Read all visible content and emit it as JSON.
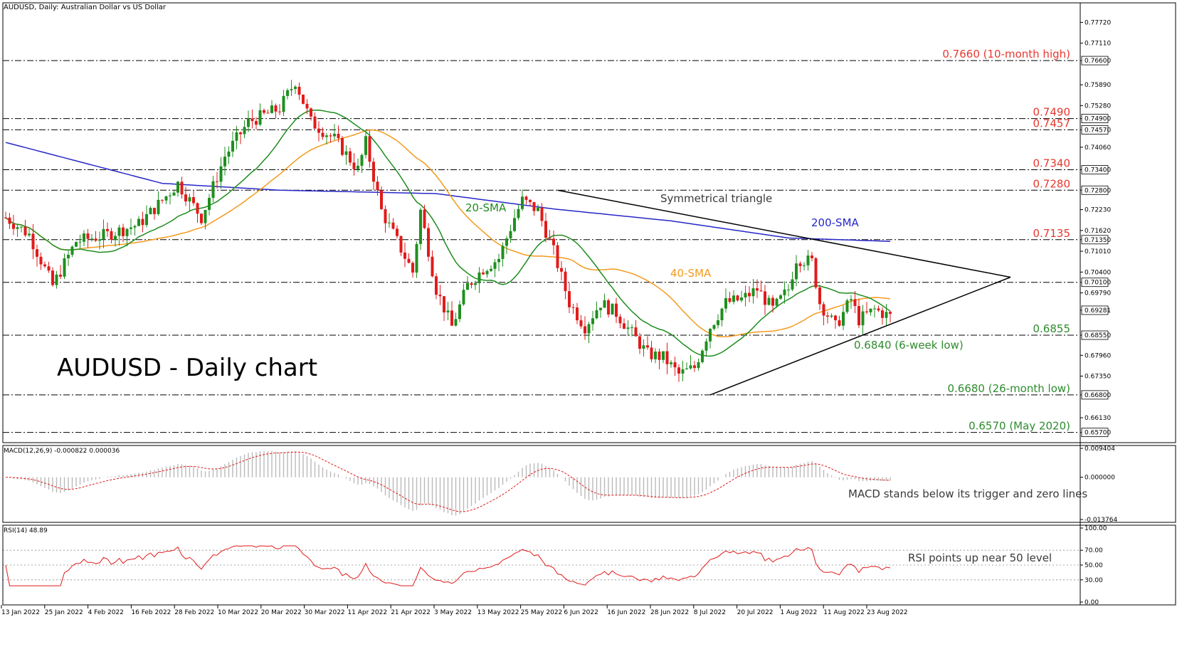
{
  "chart_data": {
    "type": "candlestick",
    "header": "AUDUSD, Daily:  Australian Dollar vs US Dollar",
    "big_title": "AUDUSD - Daily chart",
    "price_axis": {
      "range": [
        0.654,
        0.78
      ],
      "ticks": [
        "0.77720",
        "0.77110",
        "0.76600",
        "0.75890",
        "0.75280",
        "0.74900",
        "0.74570",
        "0.74060",
        "0.73400",
        "0.72800",
        "0.72230",
        "0.71620",
        "0.71350",
        "0.71010",
        "0.70400",
        "0.70100",
        "0.69790",
        "0.69281",
        "0.68550",
        "0.67960",
        "0.67350",
        "0.66800",
        "0.66130",
        "0.65700"
      ],
      "highlight_ticks": [
        "0.76600",
        "0.74900",
        "0.74570",
        "0.73400",
        "0.72800",
        "0.71350",
        "0.70100",
        "0.69281",
        "0.68550",
        "0.66800",
        "0.65700"
      ]
    },
    "x_labels": [
      "13 Jan 2022",
      "25 Jan 2022",
      "4 Feb 2022",
      "16 Feb 2022",
      "28 Feb 2022",
      "10 Mar 2022",
      "20 Mar 2022",
      "30 Mar 2022",
      "11 Apr 2022",
      "21 Apr 2022",
      "3 May 2022",
      "13 May 2022",
      "25 May 2022",
      "6 Jun 2022",
      "16 Jun 2022",
      "28 Jun 2022",
      "8 Jul 2022",
      "20 Jul 2022",
      "1 Aug 2022",
      "11 Aug 2022",
      "23 Aug 2022"
    ],
    "levels": [
      {
        "value": 0.766,
        "label": "0.7660 (10-month high)",
        "color": "#e8382f"
      },
      {
        "value": 0.749,
        "label": "0.7490",
        "color": "#e8382f"
      },
      {
        "value": 0.7457,
        "label": "0.7457",
        "color": "#e8382f"
      },
      {
        "value": 0.734,
        "label": "0.7340",
        "color": "#e8382f"
      },
      {
        "value": 0.728,
        "label": "0.7280",
        "color": "#e8382f"
      },
      {
        "value": 0.7135,
        "label": "0.7135",
        "color": "#e8382f"
      },
      {
        "value": 0.701,
        "label": "",
        "color": "#e8382f"
      },
      {
        "value": 0.6855,
        "label": "0.6855",
        "color": "#2e8b2e"
      },
      {
        "value": 0.668,
        "label": "0.6680 (26-month low)",
        "color": "#2e8b2e"
      },
      {
        "value": 0.657,
        "label": "0.6570 (May 2020)",
        "color": "#2e8b2e"
      }
    ],
    "annotations": {
      "triangle": "Symmetrical triangle",
      "sma20": "20-SMA",
      "sma40": "40-SMA",
      "sma200": "200-SMA",
      "low_6w": "0.6840 (6-week low)"
    },
    "colors": {
      "up": "#1f8f1f",
      "down": "#e01b1b",
      "sma20": "#1e8c1e",
      "sma40": "#f39a1e",
      "sma200": "#2727c8",
      "level_red": "#e8382f",
      "level_green": "#2e8b2e"
    },
    "waypoints": [
      [
        0,
        0.72
      ],
      [
        6,
        0.715
      ],
      [
        12,
        0.7
      ],
      [
        18,
        0.713
      ],
      [
        26,
        0.715
      ],
      [
        34,
        0.718
      ],
      [
        40,
        0.725
      ],
      [
        44,
        0.73
      ],
      [
        50,
        0.72
      ],
      [
        56,
        0.738
      ],
      [
        62,
        0.748
      ],
      [
        70,
        0.752
      ],
      [
        74,
        0.76
      ],
      [
        78,
        0.748
      ],
      [
        84,
        0.743
      ],
      [
        90,
        0.734
      ],
      [
        92,
        0.742
      ],
      [
        96,
        0.722
      ],
      [
        100,
        0.713
      ],
      [
        104,
        0.704
      ],
      [
        106,
        0.722
      ],
      [
        110,
        0.699
      ],
      [
        114,
        0.688
      ],
      [
        118,
        0.7
      ],
      [
        122,
        0.705
      ],
      [
        126,
        0.708
      ],
      [
        130,
        0.72
      ],
      [
        132,
        0.725
      ],
      [
        136,
        0.722
      ],
      [
        140,
        0.71
      ],
      [
        144,
        0.695
      ],
      [
        148,
        0.688
      ],
      [
        152,
        0.695
      ],
      [
        156,
        0.692
      ],
      [
        160,
        0.686
      ],
      [
        164,
        0.68
      ],
      [
        168,
        0.679
      ],
      [
        172,
        0.674
      ],
      [
        176,
        0.676
      ],
      [
        180,
        0.688
      ],
      [
        184,
        0.695
      ],
      [
        188,
        0.696
      ],
      [
        192,
        0.699
      ],
      [
        196,
        0.693
      ],
      [
        200,
        0.699
      ],
      [
        202,
        0.708
      ],
      [
        206,
        0.707
      ],
      [
        208,
        0.695
      ],
      [
        212,
        0.688
      ],
      [
        216,
        0.696
      ],
      [
        218,
        0.69
      ],
      [
        222,
        0.693
      ],
      [
        226,
        0.691
      ]
    ],
    "macd": {
      "label": "MACD(12,26,9) -0.000822 0.000036",
      "ticks": [
        "0.009404",
        "0.000000",
        "-0.013764"
      ],
      "range": [
        -0.013764,
        0.009404
      ],
      "note": "MACD stands below its trigger and zero lines"
    },
    "rsi": {
      "label": "RSI(14) 48.89",
      "ticks": [
        "100.00",
        "70.00",
        "50.00",
        "30.00",
        "0.00"
      ],
      "range": [
        0,
        100
      ],
      "note": "RSI points up near 50 level"
    }
  }
}
